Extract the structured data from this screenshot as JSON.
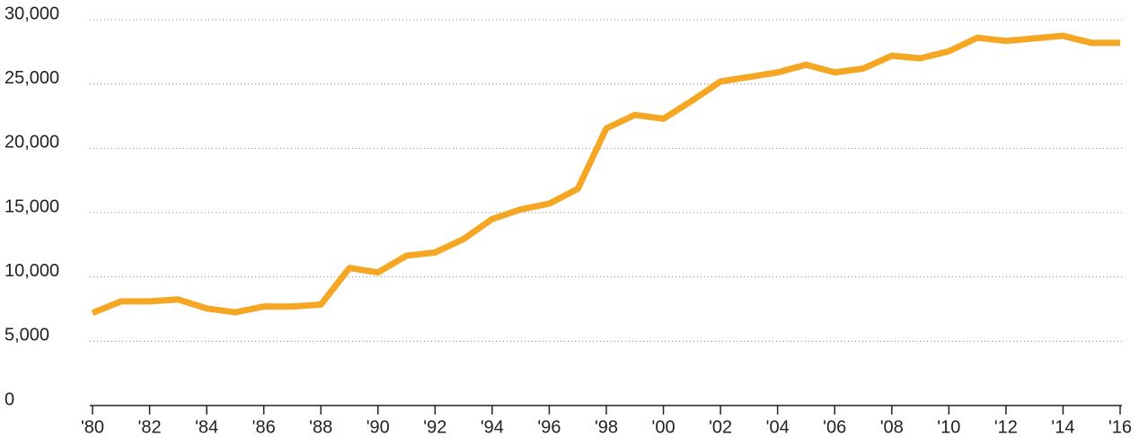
{
  "chart_data": {
    "type": "line",
    "categories": [
      "'80",
      null,
      "'82",
      null,
      "'84",
      null,
      "'86",
      null,
      "'88",
      null,
      "'90",
      null,
      "'92",
      null,
      "'94",
      null,
      "'96",
      null,
      "'98",
      null,
      "'00",
      null,
      "'02",
      null,
      "'04",
      null,
      "'06",
      null,
      "'08",
      null,
      "'10",
      null,
      "'12",
      null,
      "'14",
      null,
      "'16"
    ],
    "series": [
      {
        "color": "#f5a623",
        "values": [
          7200,
          8100,
          8100,
          8250,
          7550,
          7250,
          7700,
          7700,
          7850,
          10700,
          10350,
          11650,
          11900,
          12950,
          14500,
          15250,
          15700,
          16850,
          21550,
          22600,
          22300,
          23700,
          25200,
          25550,
          25900,
          26500,
          25900,
          26200,
          27200,
          27000,
          27550,
          28600,
          28350,
          28550,
          28750,
          28200,
          28200
        ]
      }
    ],
    "ylim": [
      0,
      30000
    ],
    "yticks": [
      0,
      {
        "value": 5000,
        "label": "5,000"
      },
      {
        "value": 10000,
        "label": "10,000"
      },
      {
        "value": 15000,
        "label": "15,000"
      },
      {
        "value": 20000,
        "label": "20,000"
      },
      {
        "value": 25000,
        "label": "25,000"
      },
      {
        "value": 30000,
        "label": "30,000"
      }
    ],
    "grid": true
  }
}
